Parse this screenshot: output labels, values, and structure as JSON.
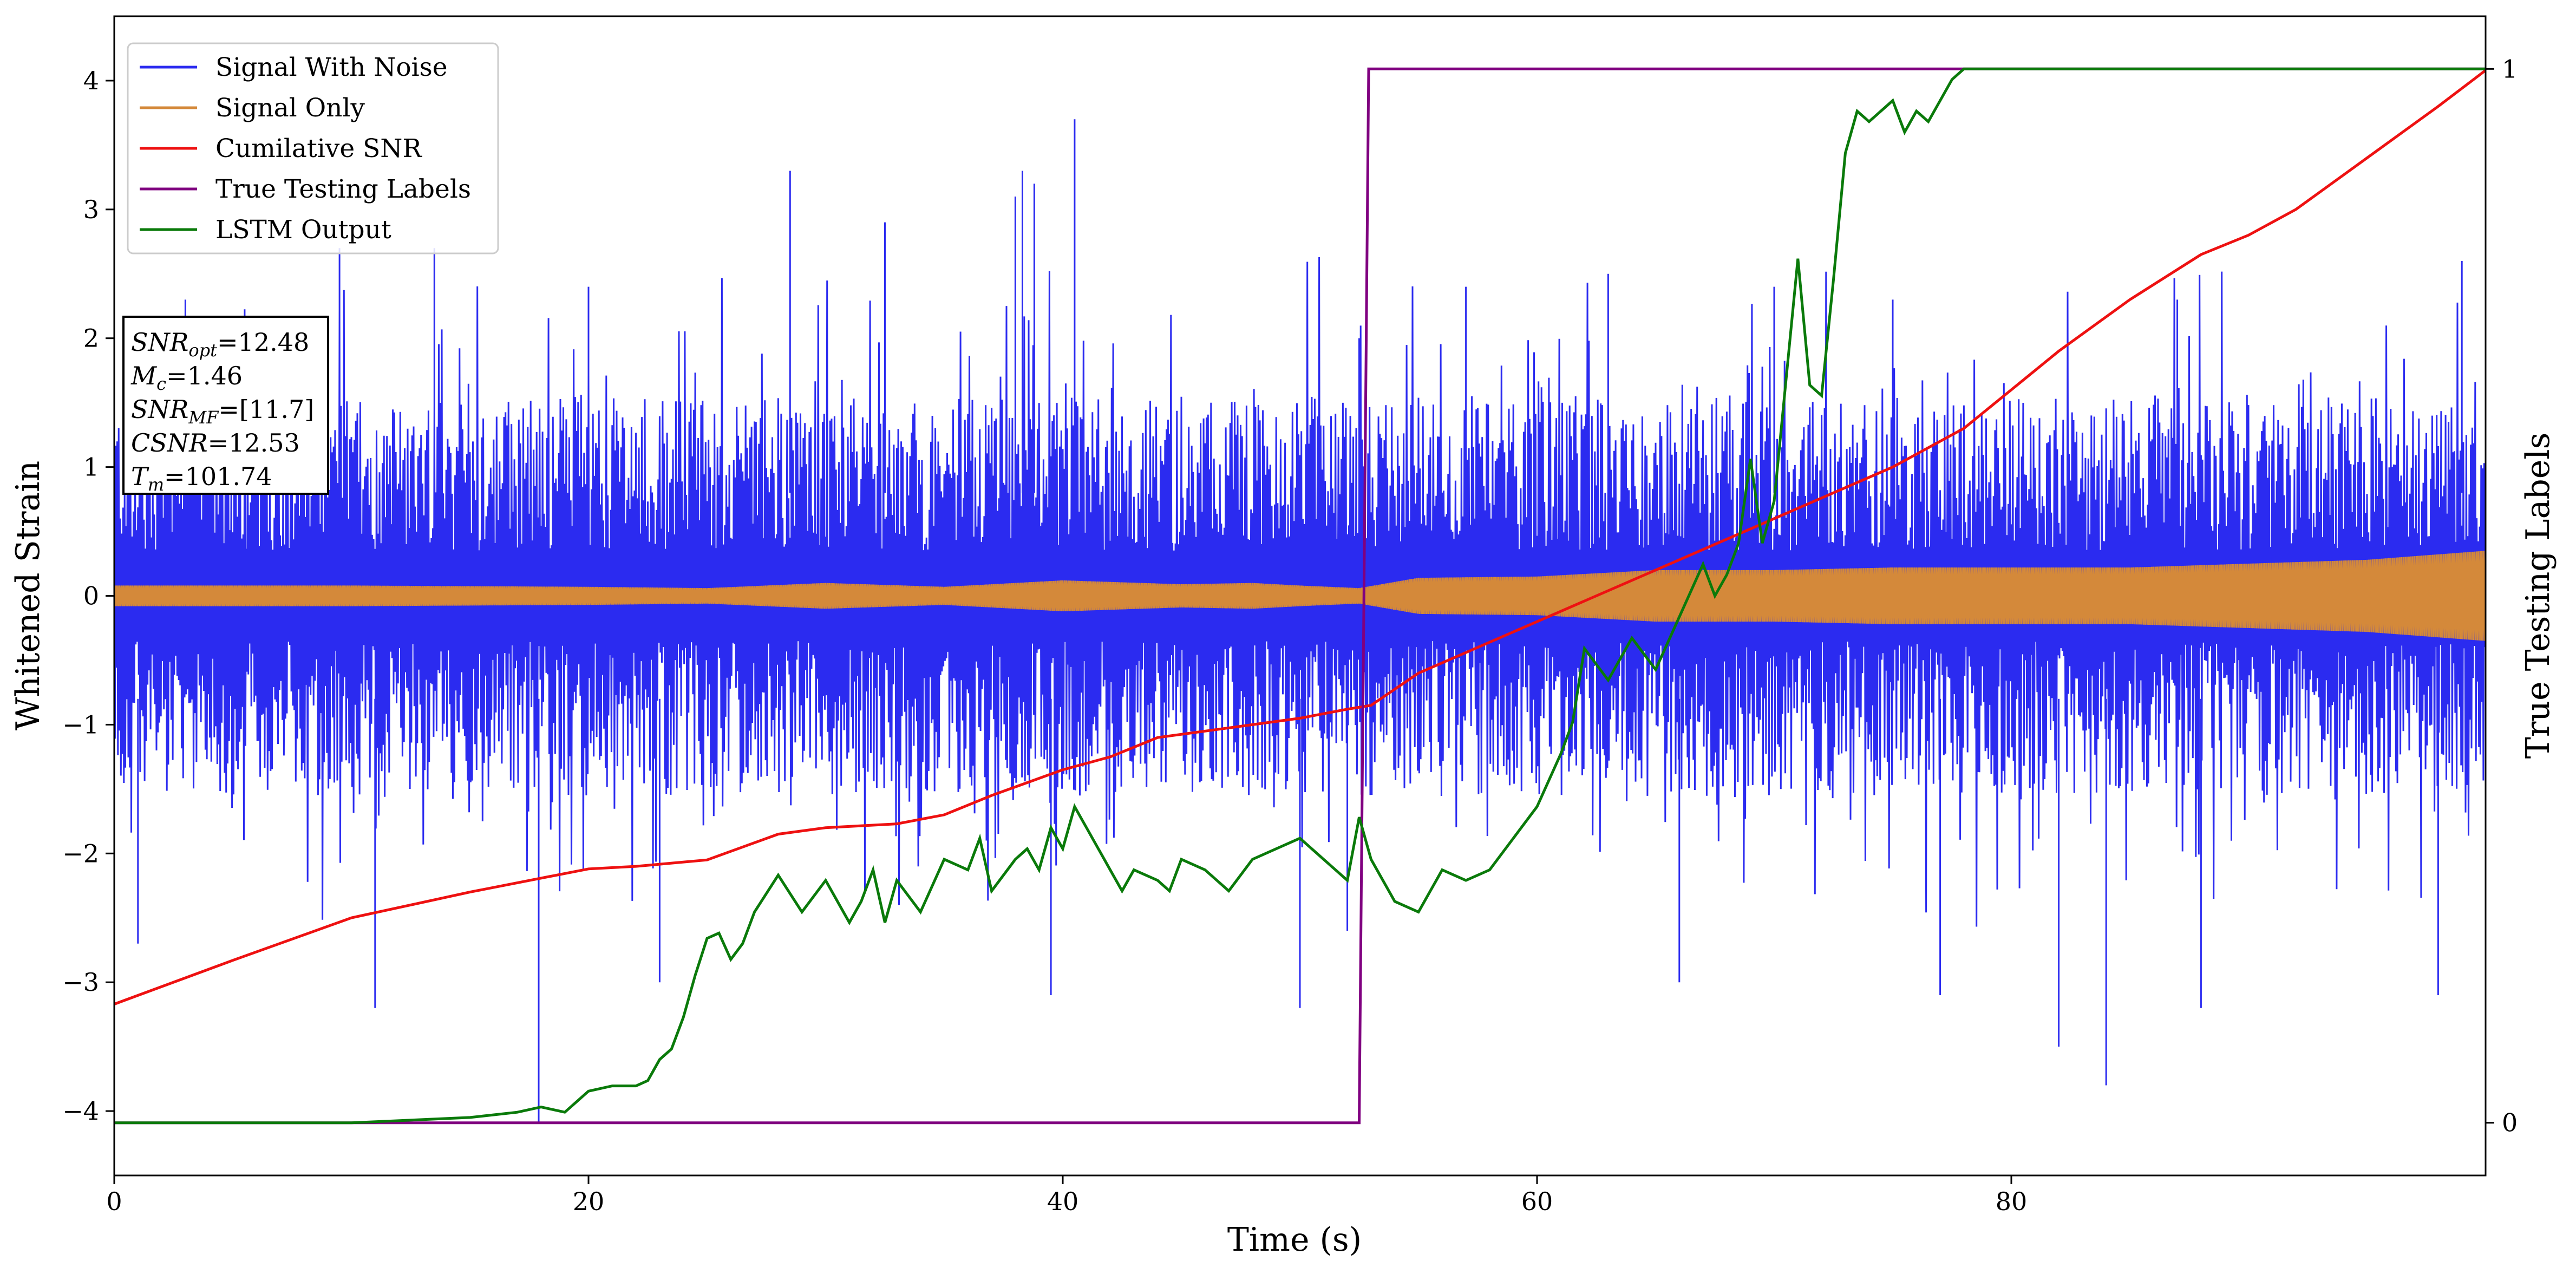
{
  "chart_data": {
    "type": "line",
    "xlabel": "Time (s)",
    "ylabel": "Whitened Strain",
    "y2label": "True Testing Labels",
    "xlim": [
      0,
      100
    ],
    "ylim": [
      -4.5,
      4.5
    ],
    "y2lim": [
      -0.05,
      1.05
    ],
    "x_ticks": [
      0,
      20,
      40,
      60,
      80
    ],
    "y_ticks": [
      -4,
      -3,
      -2,
      -1,
      0,
      1,
      2,
      3,
      4
    ],
    "y2_ticks": [
      0,
      1
    ],
    "grid": false,
    "legend_position": "upper-left",
    "series": [
      {
        "name": "Signal With Noise",
        "axis": "left",
        "color": "#2b2bf0",
        "style": "dense noise band",
        "x_range": [
          0,
          100
        ],
        "typical_band": [
          -1.4,
          1.4
        ],
        "peaks": [
          {
            "x": 3,
            "y": 2.3
          },
          {
            "x": 9.5,
            "y": 2.7
          },
          {
            "x": 13.5,
            "y": 2.7
          },
          {
            "x": 20,
            "y": 2.4
          },
          {
            "x": 28.5,
            "y": 3.3
          },
          {
            "x": 32.5,
            "y": 2.9
          },
          {
            "x": 38,
            "y": 3.1
          },
          {
            "x": 38.8,
            "y": 3.2
          },
          {
            "x": 38.3,
            "y": 3.3
          },
          {
            "x": 40.5,
            "y": 3.7
          },
          {
            "x": 52.5,
            "y": 2.0
          },
          {
            "x": 57,
            "y": 2.4
          },
          {
            "x": 63,
            "y": 2.5
          },
          {
            "x": 70,
            "y": 2.4
          },
          {
            "x": 75,
            "y": 2.3
          },
          {
            "x": 87,
            "y": 2.3
          },
          {
            "x": 99,
            "y": 2.6
          }
        ],
        "troughs": [
          {
            "x": 1,
            "y": -2.7
          },
          {
            "x": 11,
            "y": -3.2
          },
          {
            "x": 17.9,
            "y": -4.1
          },
          {
            "x": 23,
            "y": -3.0
          },
          {
            "x": 39.5,
            "y": -3.1
          },
          {
            "x": 50,
            "y": -3.2
          },
          {
            "x": 52,
            "y": -2.6
          },
          {
            "x": 66,
            "y": -3.0
          },
          {
            "x": 77,
            "y": -3.1
          },
          {
            "x": 82,
            "y": -3.5
          },
          {
            "x": 84,
            "y": -3.8
          },
          {
            "x": 88,
            "y": -3.2
          },
          {
            "x": 98,
            "y": -3.1
          }
        ]
      },
      {
        "name": "Signal Only",
        "axis": "left",
        "color": "#d4893a",
        "style": "amplitude envelope",
        "x": [
          0,
          10,
          20,
          25,
          30,
          35,
          40,
          45,
          48,
          50,
          52.5,
          55,
          60,
          65,
          70,
          75,
          80,
          85,
          90,
          95,
          100
        ],
        "amplitude": [
          0.08,
          0.08,
          0.07,
          0.06,
          0.1,
          0.07,
          0.12,
          0.09,
          0.1,
          0.08,
          0.06,
          0.14,
          0.15,
          0.2,
          0.2,
          0.22,
          0.22,
          0.22,
          0.25,
          0.28,
          0.35
        ]
      },
      {
        "name": "Cumilative SNR",
        "axis": "left",
        "color": "#ee1111",
        "x": [
          0,
          5,
          10,
          15,
          20,
          22,
          25,
          28,
          30,
          33,
          35,
          37,
          40,
          42,
          44,
          46,
          48,
          50,
          52,
          53,
          55,
          60,
          65,
          70,
          75,
          78,
          80,
          82,
          85,
          88,
          90,
          92,
          95,
          98,
          100
        ],
        "values": [
          -3.17,
          -2.83,
          -2.5,
          -2.3,
          -2.12,
          -2.1,
          -2.05,
          -1.85,
          -1.8,
          -1.77,
          -1.7,
          -1.55,
          -1.35,
          -1.25,
          -1.1,
          -1.05,
          -1.0,
          -0.95,
          -0.88,
          -0.85,
          -0.6,
          -0.2,
          0.2,
          0.6,
          1.0,
          1.3,
          1.6,
          1.9,
          2.3,
          2.65,
          2.8,
          3.0,
          3.4,
          3.8,
          4.08
        ]
      },
      {
        "name": "True Testing Labels",
        "axis": "right",
        "color": "#800080",
        "x": [
          0,
          52.5,
          52.9,
          100
        ],
        "values": [
          0,
          0,
          1,
          1
        ]
      },
      {
        "name": "LSTM Output",
        "axis": "right",
        "color": "#0a7a0a",
        "x": [
          0,
          10,
          15,
          17,
          18,
          19,
          20,
          21,
          22,
          22.5,
          23,
          23.5,
          24,
          24.5,
          25,
          25.5,
          26,
          26.5,
          27,
          28,
          29,
          30,
          31,
          31.5,
          32,
          32.5,
          33,
          34,
          35,
          36,
          36.5,
          37,
          38,
          38.5,
          39,
          39.5,
          40,
          40.5,
          41,
          42,
          42.5,
          43,
          44,
          44.5,
          45,
          46,
          47,
          48,
          49,
          50,
          51,
          52,
          52.5,
          53,
          54,
          55,
          56,
          57,
          58,
          59,
          60,
          61,
          61.5,
          62,
          63,
          64,
          65,
          66,
          67,
          67.5,
          68,
          68.5,
          69,
          69.5,
          70,
          71,
          71.5,
          72,
          72.5,
          73,
          73.5,
          74,
          75,
          75.5,
          76,
          76.5,
          77,
          77.5,
          78,
          79,
          80,
          90,
          100
        ],
        "values": [
          0,
          0,
          0.005,
          0.01,
          0.015,
          0.01,
          0.03,
          0.035,
          0.035,
          0.04,
          0.06,
          0.07,
          0.1,
          0.14,
          0.175,
          0.18,
          0.155,
          0.17,
          0.2,
          0.235,
          0.2,
          0.23,
          0.19,
          0.21,
          0.24,
          0.19,
          0.23,
          0.2,
          0.25,
          0.24,
          0.27,
          0.22,
          0.25,
          0.26,
          0.24,
          0.28,
          0.26,
          0.3,
          0.28,
          0.24,
          0.22,
          0.24,
          0.23,
          0.22,
          0.25,
          0.24,
          0.22,
          0.25,
          0.26,
          0.27,
          0.25,
          0.23,
          0.29,
          0.25,
          0.21,
          0.2,
          0.24,
          0.23,
          0.24,
          0.27,
          0.3,
          0.35,
          0.38,
          0.45,
          0.42,
          0.46,
          0.43,
          0.48,
          0.53,
          0.5,
          0.52,
          0.55,
          0.63,
          0.55,
          0.59,
          0.82,
          0.7,
          0.69,
          0.8,
          0.92,
          0.96,
          0.95,
          0.97,
          0.94,
          0.96,
          0.95,
          0.97,
          0.99,
          1.0,
          1.0,
          1.0,
          1.0,
          1.0
        ]
      }
    ]
  },
  "annotation": {
    "lines": [
      {
        "main": "SNR",
        "sub": "opt",
        "value": "=12.48"
      },
      {
        "main": "M",
        "sub": "c",
        "value": "=1.46"
      },
      {
        "main": "SNR",
        "sub": "MF",
        "value": "=[11.7]"
      },
      {
        "main": "CSNR",
        "sub": "",
        "value": "=12.53"
      },
      {
        "main": "T",
        "sub": "m",
        "value": "=101.74"
      }
    ]
  }
}
